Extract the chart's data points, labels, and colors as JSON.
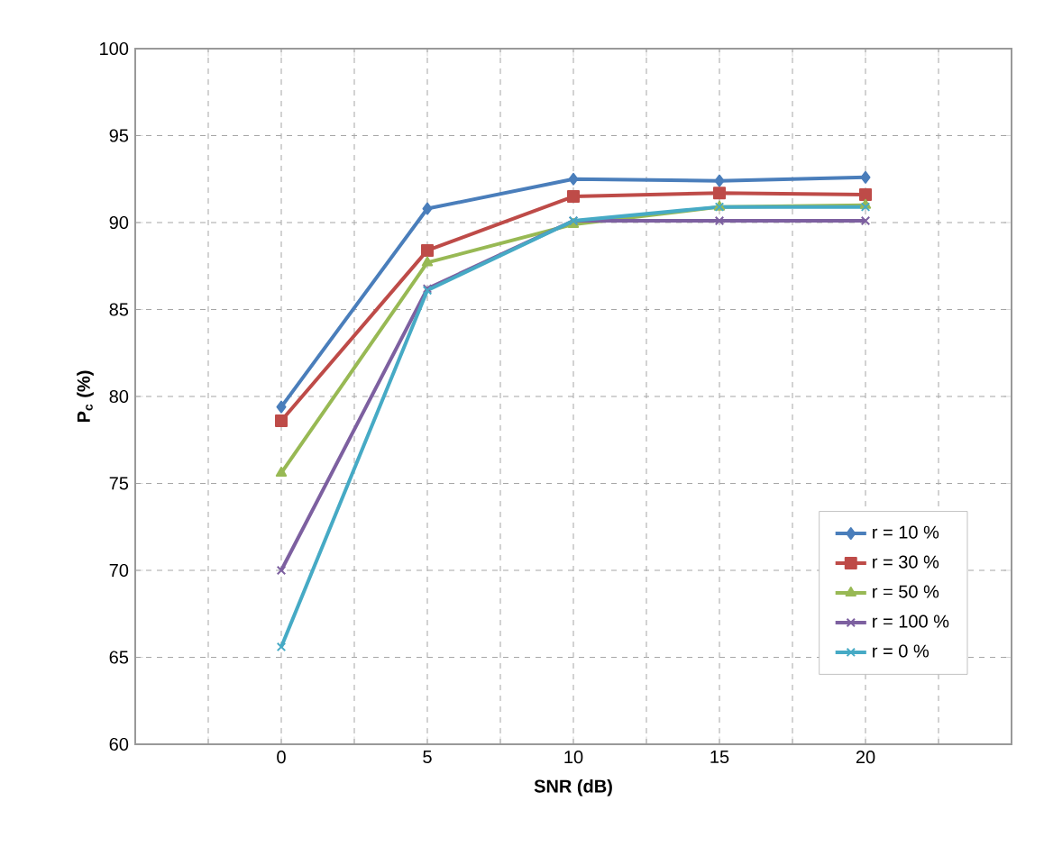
{
  "chart_data": {
    "type": "line",
    "xlabel": "SNR (dB)",
    "ylabel": "P$_{c}$ (%)",
    "x": [
      0,
      5,
      10,
      15,
      20
    ],
    "xlim": [
      -5,
      25
    ],
    "xticks": [
      {
        "value": -5,
        "label": null
      },
      {
        "value": -2.5,
        "label": null
      },
      0,
      {
        "value": 2.5,
        "label": null
      },
      5,
      {
        "value": 7.5,
        "label": null
      },
      10,
      {
        "value": 12.5,
        "label": null
      },
      15,
      {
        "value": 17.5,
        "label": null
      },
      20,
      {
        "value": 22.5,
        "label": null
      },
      {
        "value": 25,
        "label": null
      }
    ],
    "ylim": [
      60,
      100
    ],
    "yticks": [
      60,
      65,
      70,
      75,
      80,
      85,
      90,
      95,
      100
    ],
    "grid": true,
    "legend": "bottom right",
    "line_style": "solid",
    "series": [
      {
        "name": "r = 10 %",
        "color": "#4a7ebb",
        "marker": "diamond",
        "values": [
          79.4,
          90.8,
          92.5,
          92.4,
          92.6
        ]
      },
      {
        "name": "r = 30 %",
        "color": "#be4b48",
        "marker": "square",
        "values": [
          78.6,
          88.4,
          91.5,
          91.7,
          91.6
        ]
      },
      {
        "name": "r = 50 %",
        "color": "#98b954",
        "marker": "triangle",
        "values": [
          75.6,
          87.7,
          89.9,
          90.9,
          91.0
        ]
      },
      {
        "name": "r = 100 %",
        "color": "#7d60a0",
        "marker": "cross",
        "values": [
          70.0,
          86.2,
          90.1,
          90.1,
          90.1
        ]
      },
      {
        "name": "r = 0 %",
        "color": "#46aac5",
        "marker": "cross",
        "values": [
          65.6,
          86.1,
          90.1,
          90.9,
          90.9
        ]
      }
    ]
  }
}
